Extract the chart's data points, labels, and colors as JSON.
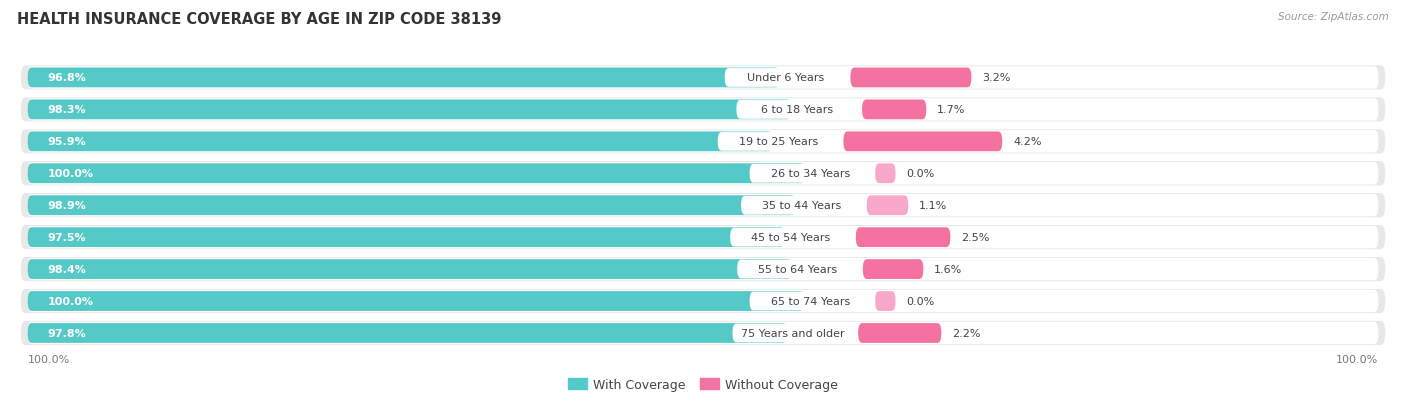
{
  "title": "HEALTH INSURANCE COVERAGE BY AGE IN ZIP CODE 38139",
  "source": "Source: ZipAtlas.com",
  "categories": [
    "Under 6 Years",
    "6 to 18 Years",
    "19 to 25 Years",
    "26 to 34 Years",
    "35 to 44 Years",
    "45 to 54 Years",
    "55 to 64 Years",
    "65 to 74 Years",
    "75 Years and older"
  ],
  "with_coverage": [
    96.8,
    98.3,
    95.9,
    100.0,
    98.9,
    97.5,
    98.4,
    100.0,
    97.8
  ],
  "without_coverage": [
    3.2,
    1.7,
    4.2,
    0.0,
    1.1,
    2.5,
    1.6,
    0.0,
    2.2
  ],
  "with_coverage_color": "#55C8C8",
  "without_coverage_color": "#F472A0",
  "without_coverage_color_light": "#F8A8C8",
  "row_bg_color": "#E8E8E8",
  "bar_height": 0.62,
  "title_fontsize": 10.5,
  "label_fontsize": 8.0,
  "value_fontsize": 8.0,
  "tick_fontsize": 8.0,
  "legend_fontsize": 9.0,
  "background_color": "#FFFFFF"
}
